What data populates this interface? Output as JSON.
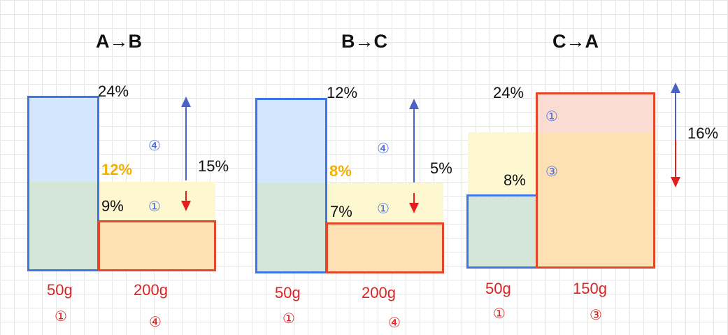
{
  "colors": {
    "blue_outline": "#3b75e8",
    "red_outline": "#e2472a",
    "blue_fill": "#d3e6fb",
    "green_fill": "#d3e6d8",
    "yellow_fill": "#fdf8cf",
    "orange_fill": "#fde0b4",
    "pink_fill": "#fbdcd3",
    "highlight_text": "#f2b100",
    "arrow_blue": "#4a62c4",
    "arrow_red": "#e41e1e"
  },
  "panels": [
    {
      "title": "A→B",
      "top_pct": "24%",
      "mix_pct": "12%",
      "bottom_pct": "9%",
      "diff_pct": "15%",
      "upper_area_label": "④",
      "lower_area_label": "①",
      "left_mass": "50g",
      "right_mass": "200g",
      "left_id": "①",
      "right_id": "④"
    },
    {
      "title": "B→C",
      "top_pct": "12%",
      "mix_pct": "8%",
      "bottom_pct": "7%",
      "diff_pct": "5%",
      "upper_area_label": "④",
      "lower_area_label": "①",
      "left_mass": "50g",
      "right_mass": "200g",
      "left_id": "①",
      "right_id": "④"
    },
    {
      "title": "C→A",
      "top_pct": "24%",
      "mix_pct": "8%",
      "diff_pct": "16%",
      "upper_area_label": "①",
      "lower_area_label": "③",
      "left_mass": "50g",
      "right_mass": "150g",
      "left_id": "①",
      "right_id": "③"
    }
  ]
}
